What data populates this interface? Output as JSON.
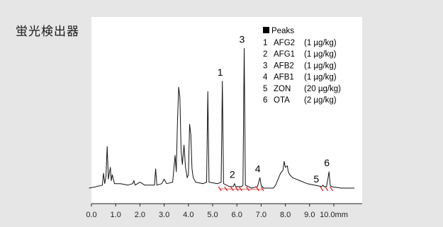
{
  "header": {
    "detector_label": "蛍光検出器"
  },
  "chart_data": {
    "type": "line",
    "title": "",
    "xlabel": "",
    "ylabel": "",
    "x_unit": "mm",
    "xlim": [
      0,
      11.0
    ],
    "x_ticks": [
      "0.0",
      "1.0",
      "2.0",
      "3.0",
      "4.0",
      "5.0",
      "6.0",
      "7.0",
      "8.0",
      "9.0",
      "10.0"
    ],
    "legend": {
      "title": "Peaks",
      "entries": [
        {
          "num": "1",
          "name": "AFG2",
          "conc": "(1 µg/kg)"
        },
        {
          "num": "2",
          "name": "AFG1",
          "conc": "(1 µg/kg)"
        },
        {
          "num": "3",
          "name": "AFB2",
          "conc": "(1 µg/kg)"
        },
        {
          "num": "4",
          "name": "AFB1",
          "conc": "(1 µg/kg)"
        },
        {
          "num": "5",
          "name": "ZON",
          "conc": "(20 µg/kg)"
        },
        {
          "num": "6",
          "name": "OTA",
          "conc": "(2 µg/kg)"
        }
      ]
    },
    "peaks": [
      {
        "label": "1",
        "x": 5.4,
        "height": 0.72
      },
      {
        "label": "2",
        "x": 5.9,
        "height": 0.03
      },
      {
        "label": "3",
        "x": 6.3,
        "height": 0.94
      },
      {
        "label": "4",
        "x": 6.95,
        "height": 0.07
      },
      {
        "label": "5",
        "x": 9.6,
        "height": 0.02
      },
      {
        "label": "6",
        "x": 9.8,
        "height": 0.11
      }
    ],
    "series": [
      {
        "points": [
          [
            -0.1,
            0.0
          ],
          [
            0.2,
            0.01
          ],
          [
            0.45,
            0.02
          ],
          [
            0.5,
            0.1
          ],
          [
            0.55,
            0.03
          ],
          [
            0.6,
            0.08
          ],
          [
            0.65,
            0.28
          ],
          [
            0.7,
            0.06
          ],
          [
            0.78,
            0.14
          ],
          [
            0.82,
            0.05
          ],
          [
            0.86,
            0.09
          ],
          [
            0.95,
            0.03
          ],
          [
            1.2,
            0.03
          ],
          [
            1.5,
            0.02
          ],
          [
            1.7,
            0.03
          ],
          [
            1.75,
            0.05
          ],
          [
            1.8,
            0.02
          ],
          [
            2.0,
            0.04
          ],
          [
            2.2,
            0.02
          ],
          [
            2.5,
            0.02
          ],
          [
            2.6,
            0.02
          ],
          [
            2.65,
            0.13
          ],
          [
            2.7,
            0.02
          ],
          [
            2.9,
            0.03
          ],
          [
            3.0,
            0.06
          ],
          [
            3.1,
            0.03
          ],
          [
            3.35,
            0.04
          ],
          [
            3.45,
            0.22
          ],
          [
            3.5,
            0.11
          ],
          [
            3.55,
            0.45
          ],
          [
            3.6,
            0.68
          ],
          [
            3.65,
            0.61
          ],
          [
            3.7,
            0.25
          ],
          [
            3.75,
            0.16
          ],
          [
            3.82,
            0.29
          ],
          [
            3.88,
            0.14
          ],
          [
            3.95,
            0.07
          ],
          [
            4.0,
            0.09
          ],
          [
            4.05,
            0.43
          ],
          [
            4.1,
            0.36
          ],
          [
            4.15,
            0.13
          ],
          [
            4.2,
            0.07
          ],
          [
            4.3,
            0.04
          ],
          [
            4.6,
            0.03
          ],
          [
            4.75,
            0.04
          ],
          [
            4.8,
            0.65
          ],
          [
            4.85,
            0.04
          ],
          [
            5.2,
            0.03
          ],
          [
            5.35,
            0.04
          ],
          [
            5.4,
            0.72
          ],
          [
            5.45,
            0.03
          ],
          [
            5.7,
            0.01
          ],
          [
            5.85,
            0.01
          ],
          [
            5.9,
            0.03
          ],
          [
            5.95,
            0.01
          ],
          [
            6.2,
            0.01
          ],
          [
            6.25,
            0.02
          ],
          [
            6.3,
            0.94
          ],
          [
            6.35,
            0.02
          ],
          [
            6.6,
            0.0
          ],
          [
            6.85,
            0.01
          ],
          [
            6.9,
            0.04
          ],
          [
            6.95,
            0.07
          ],
          [
            7.0,
            0.02
          ],
          [
            7.1,
            0.0
          ],
          [
            7.5,
            0.0
          ],
          [
            7.6,
            0.02
          ],
          [
            7.7,
            0.06
          ],
          [
            7.8,
            0.1
          ],
          [
            7.9,
            0.12
          ],
          [
            7.95,
            0.18
          ],
          [
            8.0,
            0.14
          ],
          [
            8.08,
            0.15
          ],
          [
            8.12,
            0.11
          ],
          [
            8.18,
            0.09
          ],
          [
            8.3,
            0.07
          ],
          [
            8.6,
            0.05
          ],
          [
            8.9,
            0.03
          ],
          [
            9.2,
            0.02
          ],
          [
            9.5,
            0.01
          ],
          [
            9.55,
            0.02
          ],
          [
            9.6,
            0.01
          ],
          [
            9.7,
            0.01
          ],
          [
            9.75,
            0.06
          ],
          [
            9.8,
            0.11
          ],
          [
            9.85,
            0.02
          ],
          [
            9.9,
            0.01
          ],
          [
            10.3,
            0.0
          ],
          [
            10.85,
            0.0
          ]
        ]
      }
    ],
    "grid": false
  }
}
